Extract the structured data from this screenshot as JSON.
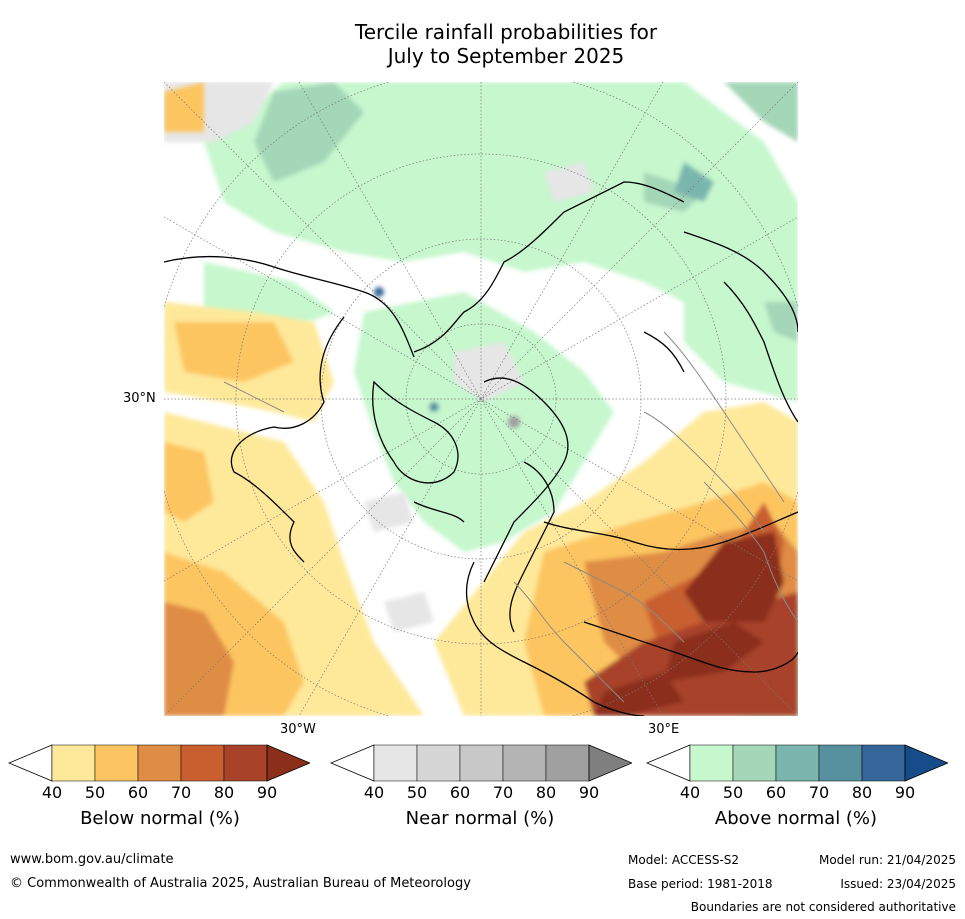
{
  "title_line1": "Tercile rainfall probabilities for",
  "title_line2": "July to September 2025",
  "map_labels": {
    "lat_30n": "30°N",
    "lon_30w": "30°W",
    "lon_30e": "30°E"
  },
  "legends": [
    {
      "label": "Below normal (%)",
      "ticks": [
        "40",
        "50",
        "60",
        "70",
        "80",
        "90"
      ],
      "colors": [
        "#ffffff",
        "#fee99a",
        "#fdc561",
        "#df8c44",
        "#c95f2e",
        "#a8432a",
        "#8b2e1a"
      ]
    },
    {
      "label": "Near normal (%)",
      "ticks": [
        "40",
        "50",
        "60",
        "70",
        "80",
        "90"
      ],
      "colors": [
        "#ffffff",
        "#e6e6e6",
        "#d6d6d6",
        "#c8c8c8",
        "#b4b4b4",
        "#a0a0a0",
        "#7f7f7f"
      ]
    },
    {
      "label": "Above normal (%)",
      "ticks": [
        "40",
        "50",
        "60",
        "70",
        "80",
        "90"
      ],
      "colors": [
        "#ffffff",
        "#c6f7cd",
        "#a4d6b8",
        "#7ab5ae",
        "#5791a0",
        "#356699",
        "#164c8a"
      ]
    }
  ],
  "footer": {
    "url": "www.bom.gov.au/climate",
    "copyright": "© Commonwealth of Australia 2025, Australian Bureau of Meteorology",
    "model": "Model: ACCESS-S2",
    "model_run": "Model run: 21/04/2025",
    "base_period": "Base period: 1981-2018",
    "issued": "Issued: 23/04/2025",
    "disclaimer": "Boundaries are not considered authoritative"
  }
}
